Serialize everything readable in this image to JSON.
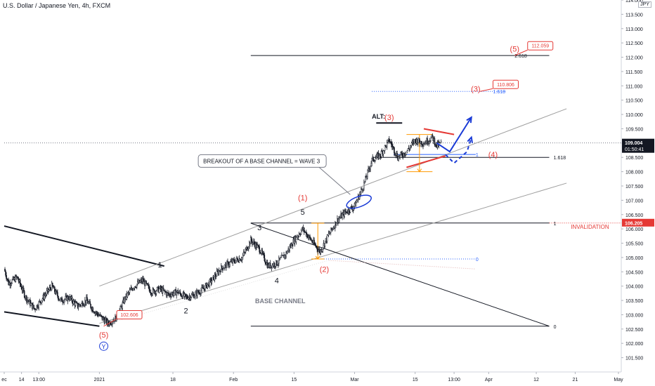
{
  "chart_data": {
    "type": "candlestick",
    "title": "U.S. Dollar / Japanese Yen, 4h, FXCM",
    "currency": "JPY",
    "ylim": [
      101.0,
      114.0
    ],
    "y_ticks": [
      "101.500",
      "102.000",
      "102.500",
      "103.000",
      "103.500",
      "104.000",
      "104.500",
      "105.000",
      "105.500",
      "106.000",
      "106.500",
      "107.000",
      "107.500",
      "108.000",
      "108.500",
      "109.000",
      "109.500",
      "110.000",
      "110.500",
      "111.000",
      "111.500",
      "112.000",
      "112.500",
      "113.000",
      "113.500",
      "114.000"
    ],
    "x_ticks": [
      {
        "label": "ec",
        "date": "2020-12-10"
      },
      {
        "label": "14",
        "date": "2020-12-14"
      },
      {
        "label": "13:00",
        "date": "2020-12-18"
      },
      {
        "label": "2021",
        "date": "2021-01-01"
      },
      {
        "label": "18",
        "date": "2021-01-18"
      },
      {
        "label": "Feb",
        "date": "2021-02-01"
      },
      {
        "label": "15",
        "date": "2021-02-15"
      },
      {
        "label": "Mar",
        "date": "2021-03-01"
      },
      {
        "label": "15",
        "date": "2021-03-15"
      },
      {
        "label": "13:00",
        "date": "2021-03-24"
      },
      {
        "label": "Apr",
        "date": "2021-04-01"
      },
      {
        "label": "12",
        "date": "2021-04-12"
      },
      {
        "label": "21",
        "date": "2021-04-21"
      },
      {
        "label": "May",
        "date": "2021-05-01"
      }
    ],
    "price_path": [
      [
        "2020-12-10",
        104.6
      ],
      [
        "2020-12-11",
        104.1
      ],
      [
        "2020-12-13",
        104.3
      ],
      [
        "2020-12-15",
        103.6
      ],
      [
        "2020-12-17",
        103.2
      ],
      [
        "2020-12-19",
        103.6
      ],
      [
        "2020-12-21",
        104.0
      ],
      [
        "2020-12-23",
        103.5
      ],
      [
        "2020-12-25",
        103.6
      ],
      [
        "2020-12-27",
        103.3
      ],
      [
        "2020-12-29",
        103.5
      ],
      [
        "2020-12-31",
        103.1
      ],
      [
        "2021-01-03",
        102.7
      ],
      [
        "2021-01-05",
        102.9
      ],
      [
        "2021-01-07",
        103.6
      ],
      [
        "2021-01-09",
        104.0
      ],
      [
        "2021-01-11",
        104.2
      ],
      [
        "2021-01-13",
        103.8
      ],
      [
        "2021-01-15",
        103.9
      ],
      [
        "2021-01-17",
        103.7
      ],
      [
        "2021-01-19",
        103.8
      ],
      [
        "2021-01-21",
        103.6
      ],
      [
        "2021-01-23",
        103.7
      ],
      [
        "2021-01-25",
        103.9
      ],
      [
        "2021-01-27",
        104.2
      ],
      [
        "2021-01-29",
        104.6
      ],
      [
        "2021-01-31",
        104.8
      ],
      [
        "2021-02-03",
        105.0
      ],
      [
        "2021-02-05",
        105.6
      ],
      [
        "2021-02-07",
        105.3
      ],
      [
        "2021-02-09",
        104.7
      ],
      [
        "2021-02-11",
        104.8
      ],
      [
        "2021-02-13",
        105.1
      ],
      [
        "2021-02-15",
        105.6
      ],
      [
        "2021-02-17",
        106.0
      ],
      [
        "2021-02-19",
        105.6
      ],
      [
        "2021-02-21",
        105.2
      ],
      [
        "2021-02-23",
        105.8
      ],
      [
        "2021-02-25",
        106.3
      ],
      [
        "2021-02-27",
        106.6
      ],
      [
        "2021-03-01",
        106.8
      ],
      [
        "2021-03-03",
        107.5
      ],
      [
        "2021-03-05",
        108.4
      ],
      [
        "2021-03-07",
        108.6
      ],
      [
        "2021-03-09",
        109.1
      ],
      [
        "2021-03-11",
        108.5
      ],
      [
        "2021-03-13",
        108.7
      ],
      [
        "2021-03-15",
        109.1
      ],
      [
        "2021-03-17",
        109.0
      ],
      [
        "2021-03-19",
        109.2
      ],
      [
        "2021-03-20",
        108.9
      ],
      [
        "2021-03-21",
        109.0
      ]
    ],
    "last_price": "109.004",
    "countdown": "01:50:41",
    "horizontal_levels": [
      {
        "price": 109.004,
        "style": "dotted",
        "color": "#787b86",
        "from": "2020-12-10",
        "to": "2021-05-05"
      },
      {
        "price": 112.059,
        "color": "#131722",
        "from": "2021-02-05",
        "to": "2021-04-15"
      },
      {
        "price": 110.806,
        "color": "#2962ff",
        "style": "dotted",
        "from": "2021-03-05",
        "to": "2021-04-05"
      },
      {
        "price": 108.5,
        "color": "#131722",
        "from": "2021-03-05",
        "to": "2021-04-15"
      },
      {
        "price": 108.6,
        "color": "#2962ff",
        "from": "2021-03-10",
        "to": "2021-03-29"
      },
      {
        "price": 106.205,
        "color": "#131722",
        "from": "2021-02-05",
        "to": "2021-04-15"
      },
      {
        "price": 106.205,
        "color": "#e53935",
        "style": "dotted",
        "from": "2021-04-15",
        "to": "2021-05-05"
      },
      {
        "price": 104.95,
        "color": "#2962ff",
        "style": "dotted",
        "from": "2021-02-19",
        "to": "2021-03-29"
      },
      {
        "price": 102.6,
        "color": "#131722",
        "from": "2021-02-05",
        "to": "2021-04-15"
      },
      {
        "price": 109.7,
        "color": "#131722",
        "width": 2,
        "from": "2021-03-06",
        "to": "2021-03-12"
      }
    ],
    "trend_lines": [
      {
        "from": [
          "2020-12-10",
          106.1
        ],
        "to": [
          "2021-01-16",
          104.7
        ],
        "color": "#131722",
        "width": 2
      },
      {
        "from": [
          "2020-12-10",
          103.1
        ],
        "to": [
          "2021-01-01",
          102.6
        ],
        "color": "#131722",
        "width": 2
      },
      {
        "from": [
          "2021-01-01",
          104.0
        ],
        "to": [
          "2021-04-19",
          110.2
        ],
        "color": "#9e9e9e"
      },
      {
        "from": [
          "2021-01-01",
          102.7
        ],
        "to": [
          "2021-04-19",
          107.6
        ],
        "color": "#9e9e9e"
      },
      {
        "from": [
          "2021-02-05",
          106.2
        ],
        "to": [
          "2021-04-15",
          102.6
        ],
        "color": "#131722"
      },
      {
        "from": [
          "2021-03-17",
          109.5
        ],
        "to": [
          "2021-03-24",
          109.3
        ],
        "color": "#e53935",
        "width": 2
      },
      {
        "from": [
          "2021-03-13",
          108.15
        ],
        "to": [
          "2021-03-22",
          108.55
        ],
        "color": "#e53935",
        "width": 2
      },
      {
        "from": [
          "2021-02-23",
          104.9
        ],
        "to": [
          "2021-03-29",
          104.6
        ],
        "color": "#e0b0b0",
        "style": "dotted"
      },
      {
        "from": [
          "2021-01-01",
          102.6
        ],
        "to": [
          "2021-02-23",
          104.9
        ],
        "color": "#e0e0e0",
        "style": "dotted"
      }
    ],
    "projections": [
      {
        "points": [
          [
            "2021-03-20",
            109.0
          ],
          [
            "2021-03-23",
            108.7
          ],
          [
            "2021-03-28",
            109.9
          ]
        ],
        "color": "#1a3bd6",
        "style": "solid",
        "arrow": true
      },
      {
        "points": [
          [
            "2021-03-22",
            108.6
          ],
          [
            "2021-03-24",
            108.3
          ],
          [
            "2021-03-27",
            108.7
          ],
          [
            "2021-03-28",
            109.2
          ]
        ],
        "color": "#1a3bd6",
        "style": "dashed",
        "arrow": true
      }
    ],
    "measure_boxes": [
      {
        "from": [
          "2021-03-13",
          109.3
        ],
        "to": [
          "2021-03-19",
          108.0
        ],
        "color": "#ff9800"
      },
      {
        "from": [
          "2021-02-19",
          106.2
        ],
        "to": [
          "2021-02-22",
          104.95
        ],
        "color": "#ff9800"
      }
    ],
    "wave_labels": [
      {
        "text": "1",
        "at": [
          "2021-01-15",
          104.65
        ],
        "color": "#131722"
      },
      {
        "text": "2",
        "at": [
          "2021-01-21",
          103.05
        ],
        "color": "#131722"
      },
      {
        "text": "3",
        "at": [
          "2021-02-07",
          105.95
        ],
        "color": "#131722"
      },
      {
        "text": "4",
        "at": [
          "2021-02-11",
          104.1
        ],
        "color": "#131722"
      },
      {
        "text": "5",
        "at": [
          "2021-02-17",
          106.5
        ],
        "color": "#131722"
      },
      {
        "text": "(1)",
        "at": [
          "2021-02-17",
          107.0
        ],
        "color": "#e53935"
      },
      {
        "text": "(2)",
        "at": [
          "2021-02-22",
          104.5
        ],
        "color": "#e53935"
      },
      {
        "text": "(3)",
        "at": [
          "2021-03-09",
          109.8
        ],
        "color": "#e53935"
      },
      {
        "text": "(3)",
        "at": [
          "2021-03-29",
          110.8
        ],
        "color": "#e53935"
      },
      {
        "text": "(4)",
        "at": [
          "2021-04-02",
          108.5
        ],
        "color": "#e53935"
      },
      {
        "text": "(5)",
        "at": [
          "2021-04-07",
          112.2
        ],
        "color": "#e53935"
      },
      {
        "text": "(5)",
        "at": [
          "2021-01-02",
          102.2
        ],
        "color": "#e53935"
      }
    ],
    "circled_labels": [
      {
        "text": "Y",
        "at": [
          "2021-01-02",
          101.9
        ],
        "color": "#1a3bd6"
      }
    ],
    "ellipses": [
      {
        "center": [
          "2021-03-02",
          106.95
        ],
        "rx_days": 3,
        "ry_price": 0.18,
        "color": "#1a3bd6"
      }
    ],
    "price_tags": [
      {
        "text": "112.059",
        "at": [
          "2021-04-10",
          112.4
        ],
        "pointer": [
          "2021-04-07",
          112.059
        ]
      },
      {
        "text": "110.806",
        "at": [
          "2021-04-02",
          111.05
        ],
        "pointer": [
          "2021-03-30",
          110.806
        ]
      },
      {
        "text": "102.606",
        "at": [
          "2021-01-05",
          103.0
        ],
        "pointer": [
          "2021-01-02",
          102.6
        ]
      }
    ],
    "level_labels": [
      {
        "text": "2.618",
        "at": [
          "2021-04-07",
          112.059
        ],
        "color": "#131722"
      },
      {
        "text": "1.618",
        "at": [
          "2021-04-02",
          110.806
        ],
        "color": "#2962ff"
      },
      {
        "text": "1.618",
        "at": [
          "2021-04-16",
          108.5
        ],
        "color": "#131722"
      },
      {
        "text": "1",
        "at": [
          "2021-03-29",
          108.6
        ],
        "color": "#2962ff"
      },
      {
        "text": "1",
        "at": [
          "2021-04-16",
          106.205
        ],
        "color": "#131722"
      },
      {
        "text": "0",
        "at": [
          "2021-03-29",
          104.95
        ],
        "color": "#2962ff"
      },
      {
        "text": "0",
        "at": [
          "2021-04-16",
          102.6
        ],
        "color": "#131722"
      }
    ],
    "axis_price_labels": [
      {
        "text": "109.004",
        "price": 109.004,
        "bg": "#131722",
        "fg": "#ffffff"
      },
      {
        "text": "106.205",
        "price": 106.205,
        "bg": "#e53935",
        "fg": "#ffffff"
      }
    ],
    "annotations": [
      {
        "text": "ALT:",
        "at": [
          "2021-03-05",
          109.85
        ],
        "color": "#131722",
        "bold": true
      },
      {
        "text": "BREAKOUT OF A BASE CHANNEL = WAVE 3",
        "at": [
          "2021-01-25",
          108.3
        ],
        "color": "#131722",
        "boxed": true,
        "pointer": [
          "2021-02-28",
          107.2
        ]
      },
      {
        "text": "BASE CHANNEL",
        "at": [
          "2021-02-06",
          103.4
        ],
        "color": "#787b86",
        "bold": true
      },
      {
        "text": "INVALIDATION",
        "at": [
          "2021-04-20",
          106.0
        ],
        "color": "#e53935"
      }
    ],
    "grid": false
  }
}
